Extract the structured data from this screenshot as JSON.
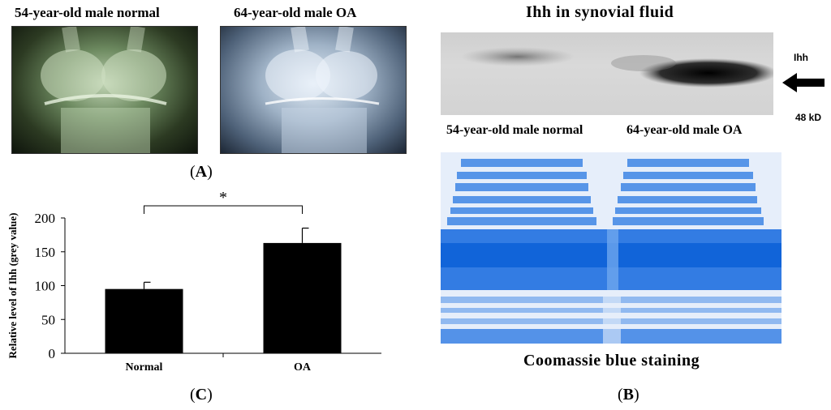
{
  "panel_a": {
    "left_title": "54-year-old male normal",
    "right_title": "64-year-old male OA",
    "label_letter": "A"
  },
  "panel_b": {
    "title": "Ihh in synovial fluid",
    "band_label": "Ihh",
    "mw_label": "48 kD",
    "lane_left": "54-year-old male normal",
    "lane_right": "64-year-old male OA",
    "stain_label": "Coomassie blue staining",
    "label_letter": "B",
    "arrow_icon": "arrow-left-icon"
  },
  "panel_c": {
    "label_letter": "C",
    "significance": "*"
  },
  "chart_data": {
    "type": "bar",
    "categories": [
      "Normal",
      "OA"
    ],
    "values": [
      95,
      163
    ],
    "error": [
      10,
      22
    ],
    "ylabel": "Relative level of Ihh (grey value)",
    "xlabel": "",
    "ylim": [
      0,
      200
    ],
    "yticks": [
      0,
      50,
      100,
      150,
      200
    ],
    "bar_color": "#000000",
    "grid": false
  }
}
